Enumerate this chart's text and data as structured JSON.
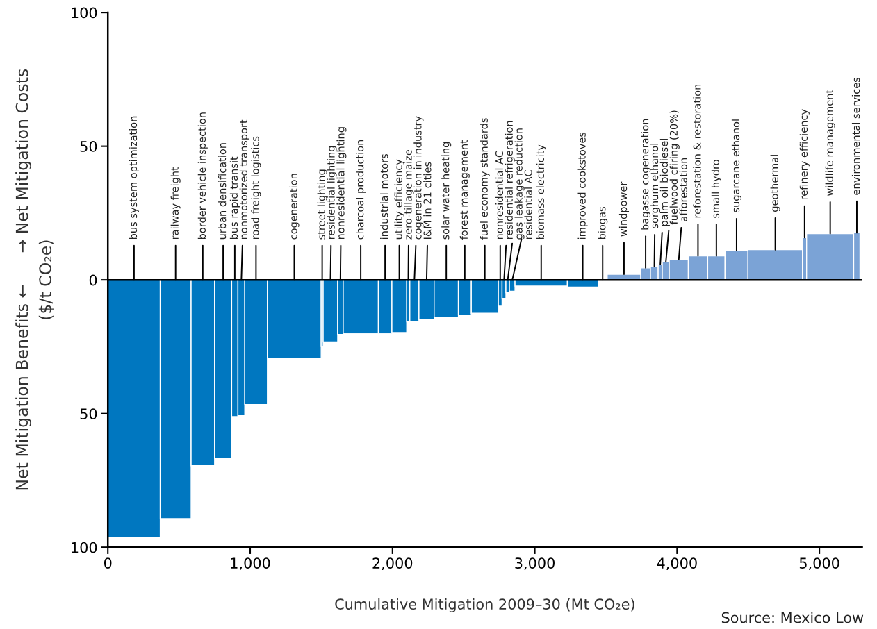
{
  "chart_data": {
    "type": "histogram",
    "xlabel": "Cumulative Mitigation 2009–30 (Mt CO₂e)",
    "ylabel": "Net Mitigation Benefits ←      → Net Mitigation Costs\n($/t CO₂e)",
    "bins": [
      0,
      368,
      585,
      750,
      870,
      914,
      962,
      1121,
      1499,
      1513,
      1615,
      1654,
      1901,
      1996,
      2100,
      2122,
      2186,
      2293,
      2463,
      2554,
      2744,
      2770,
      2797,
      2822,
      2861,
      3229,
      3445,
      3509,
      3745,
      3813,
      3867,
      3896,
      3945,
      4079,
      4215,
      4337,
      4498,
      4881,
      4910,
      5241,
      5285
    ],
    "values": [
      -96.3,
      -89.3,
      -69.5,
      -66.8,
      -51.1,
      -50.8,
      -46.6,
      -29.2,
      -24.9,
      -23.2,
      -20.4,
      -20.0,
      -20.0,
      -19.7,
      -15.7,
      -15.5,
      -14.9,
      -14.0,
      -13.1,
      -12.5,
      -9.8,
      -6.9,
      -4.8,
      -4.2,
      -2.3,
      -2.7,
      null,
      2.1,
      4.5,
      5.1,
      5.9,
      6.7,
      7.7,
      9.0,
      9.0,
      11.1,
      11.3,
      15.8,
      17.3,
      17.6
    ],
    "colors": [
      "#0077c0",
      "#0077c0",
      "#0077c0",
      "#0077c0",
      "#0077c0",
      "#0077c0",
      "#0077c0",
      "#0077c0",
      "#0077c0",
      "#0077c0",
      "#0077c0",
      "#0077c0",
      "#0077c0",
      "#0077c0",
      "#0077c0",
      "#0077c0",
      "#0077c0",
      "#0077c0",
      "#0077c0",
      "#0077c0",
      "#0077c0",
      "#0077c0",
      "#0077c0",
      "#0077c0",
      "#0077c0",
      "#0077c0",
      "#0077c0",
      "#7ba3d6",
      "#7ba3d6",
      "#7ba3d6",
      "#7ba3d6",
      "#7ba3d6",
      "#7ba3d6",
      "#7ba3d6",
      "#7ba3d6",
      "#7ba3d6",
      "#7ba3d6",
      "#7ba3d6",
      "#7ba3d6",
      "#7ba3d6"
    ],
    "annotations": [
      {
        "text": "bus system optimization",
        "x": 184,
        "y": 0
      },
      {
        "text": "railway freight",
        "x": 476,
        "y": 0
      },
      {
        "text": "border vehicle inspection",
        "x": 667,
        "y": 0
      },
      {
        "text": "urban densification",
        "x": 810,
        "y": 0
      },
      {
        "text": "bus rapid transit",
        "x": 892,
        "y": 0
      },
      {
        "text": "nonmotorized transport",
        "x": 938,
        "y": 0
      },
      {
        "text": "road freight logistics",
        "x": 1041,
        "y": 0
      },
      {
        "text": "cogeneration",
        "x": 1310,
        "y": 0
      },
      {
        "text": "street lighting",
        "x": 1506,
        "y": 0
      },
      {
        "text": "residential lighting",
        "x": 1564,
        "y": 0
      },
      {
        "text": "nonresidential lighting",
        "x": 1634,
        "y": 0
      },
      {
        "text": "charcoal production",
        "x": 1777,
        "y": 0
      },
      {
        "text": "industrial motors",
        "x": 1948,
        "y": 0
      },
      {
        "text": "utility efficiency",
        "x": 2048,
        "y": 0
      },
      {
        "text": "zero-tillage maize",
        "x": 2111,
        "y": 0
      },
      {
        "text": "cogeneration in industry",
        "x": 2154,
        "y": 0
      },
      {
        "text": "I&M in 21 cities",
        "x": 2240,
        "y": 0
      },
      {
        "text": "solar water heating",
        "x": 2378,
        "y": 0
      },
      {
        "text": "forest management",
        "x": 2508,
        "y": 0
      },
      {
        "text": "fuel economy standards",
        "x": 2649,
        "y": 0
      },
      {
        "text": "nonresidential AC",
        "x": 2757,
        "y": 0
      },
      {
        "text": "residential refrigeration",
        "x": 2784,
        "y": 0
      },
      {
        "text": "gas leakage reduction",
        "x": 2810,
        "y": 0
      },
      {
        "text": "residential AC",
        "x": 2842,
        "y": 0
      },
      {
        "text": "biomass electricity",
        "x": 3045,
        "y": 0
      },
      {
        "text": "improved cookstoves",
        "x": 3337,
        "y": 0
      },
      {
        "text": "biogas",
        "x": 3477,
        "y": 0
      },
      {
        "text": "windpower",
        "x": 3627,
        "y": 2.1
      },
      {
        "text": "bagasse cogeneration",
        "x": 3779,
        "y": 4.5
      },
      {
        "text": "sorghum ethanol",
        "x": 3840,
        "y": 5.1
      },
      {
        "text": "palm oil biodiesel",
        "x": 3882,
        "y": 5.9
      },
      {
        "text": "fuelwood cfiring (20%)",
        "x": 3921,
        "y": 6.7
      },
      {
        "text": "afforestation",
        "x": 4012,
        "y": 7.7
      },
      {
        "text": "reforestation & restoration",
        "x": 4147,
        "y": 9.0
      },
      {
        "text": "small hydro",
        "x": 4276,
        "y": 9.0
      },
      {
        "text": "sugarcane ethanol",
        "x": 4418,
        "y": 11.1
      },
      {
        "text": "geothermal",
        "x": 4690,
        "y": 11.3
      },
      {
        "text": "refinery efficiency",
        "x": 4896,
        "y": 15.8
      },
      {
        "text": "wildlife management",
        "x": 5076,
        "y": 17.3
      },
      {
        "text": "environmental services",
        "x": 5263,
        "y": 17.6
      },
      "Source: Mexico Low"
    ],
    "xlim": [
      0,
      5300
    ],
    "xticks": [
      0,
      {
        "value": 1000,
        "label": "1,000"
      },
      {
        "value": 2000,
        "label": "2,000"
      },
      {
        "value": 3000,
        "label": "3,000"
      },
      {
        "value": 4000,
        "label": "4,000"
      },
      {
        "value": 5000,
        "label": "5,000"
      }
    ],
    "ylim": [
      -100,
      100
    ],
    "yticks": [
      {
        "value": -100,
        "label": "100"
      },
      {
        "value": -50,
        "label": "50"
      },
      0,
      50,
      100
    ],
    "ref_lines": [
      {
        "axis": "y",
        "value": 0,
        "color": "#000000"
      }
    ],
    "grid": false
  }
}
